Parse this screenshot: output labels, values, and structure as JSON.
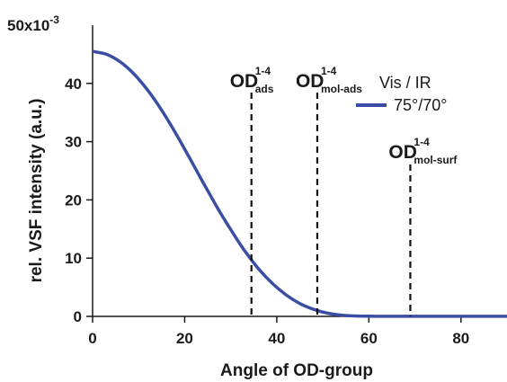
{
  "chart_data": {
    "type": "line",
    "xlabel": "Angle of OD-group",
    "ylabel": "rel. VSF intensity (a.u.)",
    "y_scale_label": "50x10",
    "y_scale_exponent": "-3",
    "xlim": [
      0,
      90
    ],
    "ylim": [
      0,
      50
    ],
    "x_ticks": [
      "0",
      "20",
      "40",
      "60",
      "80"
    ],
    "y_ticks": [
      "0",
      "10",
      "20",
      "30",
      "40"
    ],
    "series": [
      {
        "name": "75°/70°",
        "color": "#3a4fa3",
        "x": [
          0,
          3,
          6,
          9,
          12,
          15,
          18,
          21,
          24,
          27,
          30,
          33,
          36,
          39,
          42,
          45,
          48,
          51,
          54,
          57,
          60,
          63,
          66,
          70,
          75,
          80,
          85,
          90
        ],
        "y": [
          45.5,
          45.0,
          43.7,
          41.6,
          38.8,
          35.4,
          31.5,
          27.3,
          23.0,
          18.8,
          14.9,
          11.3,
          8.2,
          5.7,
          3.7,
          2.2,
          1.2,
          0.55,
          0.22,
          0.08,
          0.03,
          0.02,
          0.02,
          0.02,
          0.02,
          0.02,
          0.02,
          0.02
        ]
      }
    ],
    "legend": {
      "title": "Vis / IR",
      "placement": "top-right"
    },
    "markers": [
      {
        "x": 34.5,
        "main": "OD",
        "sup": "1-4",
        "sub": "ads"
      },
      {
        "x": 48.8,
        "main": "OD",
        "sup": "1-4",
        "sub": "mol-ads"
      },
      {
        "x": 69.0,
        "main": "OD",
        "sup": "1-4",
        "sub": "mol-surf"
      }
    ],
    "grid": false
  }
}
